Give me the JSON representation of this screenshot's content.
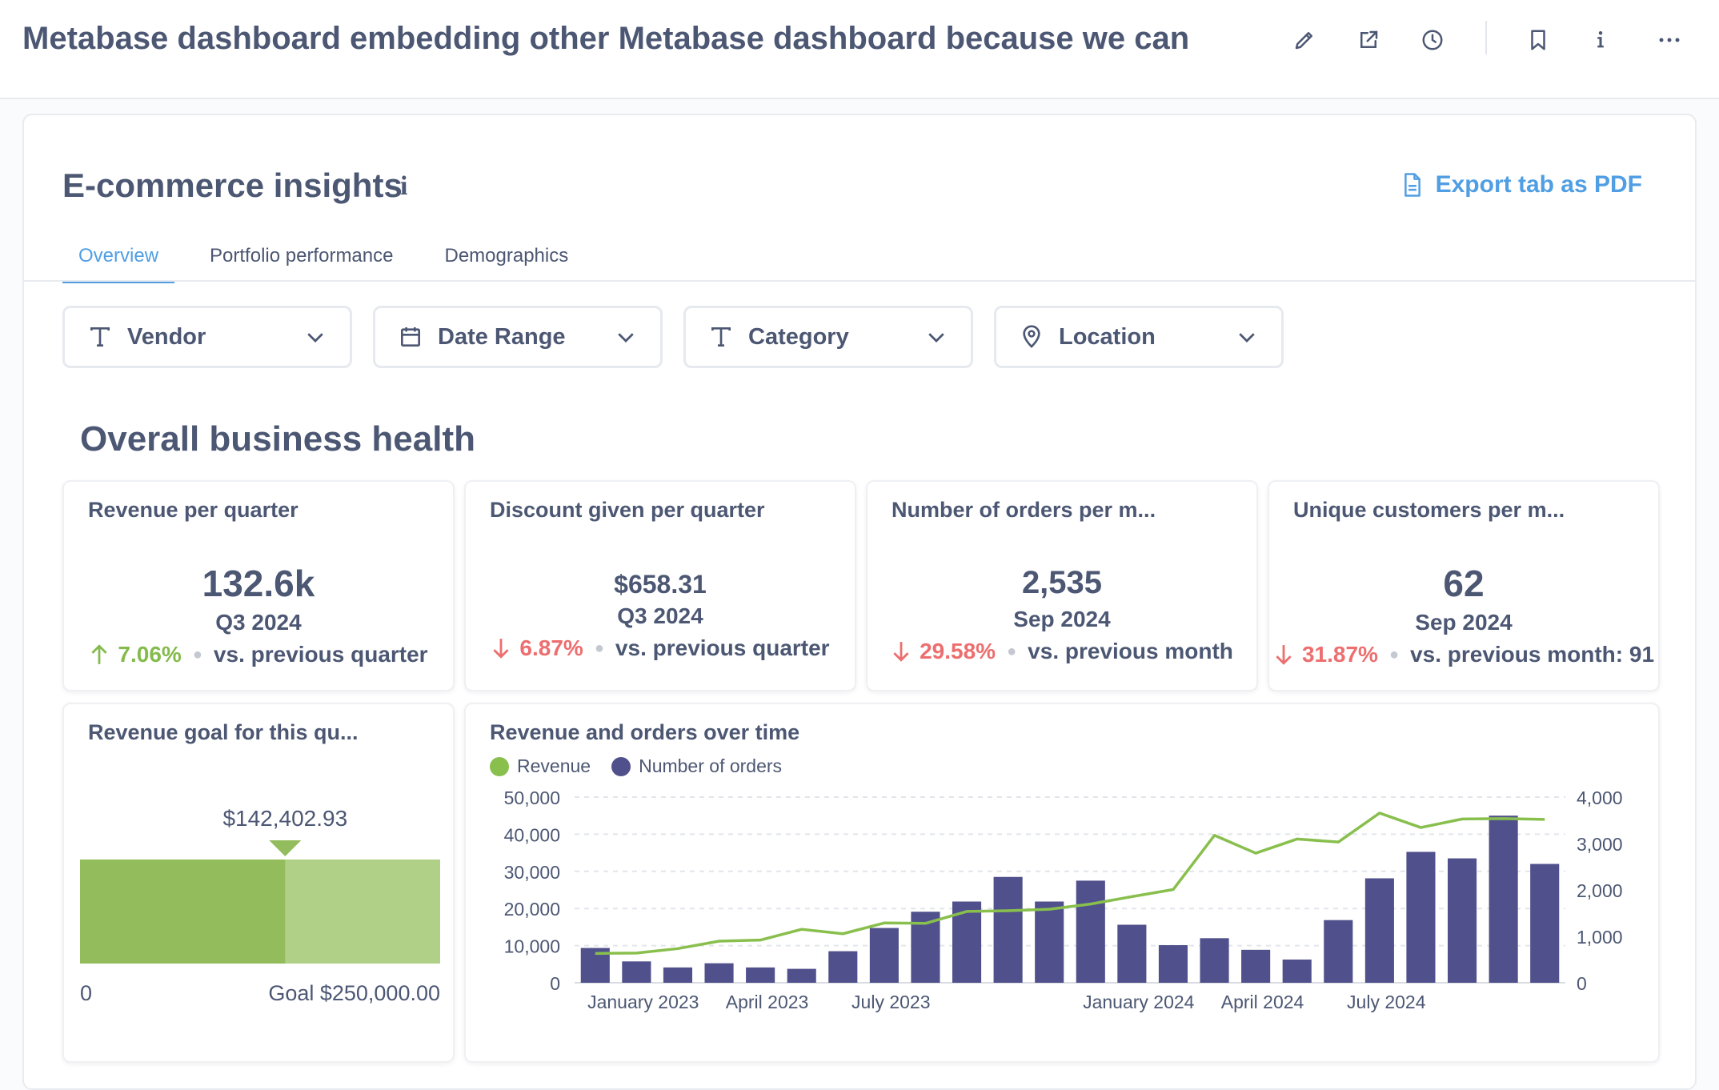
{
  "header": {
    "title": "Metabase dashboard embedding other Metabase dashboard because we can",
    "icons": [
      "pencil-icon",
      "share-icon",
      "clock-icon",
      "bookmark-icon",
      "info-icon",
      "more-icon"
    ]
  },
  "dashboard": {
    "title": "E-commerce insights",
    "info_glyph": "i",
    "export_label": "Export tab as PDF",
    "tabs": [
      {
        "label": "Overview",
        "active": true
      },
      {
        "label": "Portfolio performance",
        "active": false
      },
      {
        "label": "Demographics",
        "active": false
      }
    ],
    "filters": [
      {
        "label": "Vendor",
        "icon": "text-icon"
      },
      {
        "label": "Date Range",
        "icon": "calendar-icon"
      },
      {
        "label": "Category",
        "icon": "text-icon"
      },
      {
        "label": "Location",
        "icon": "location-pin-icon"
      }
    ],
    "section_title": "Overall business health"
  },
  "kpis": [
    {
      "title": "Revenue per quarter",
      "value": "132.6k",
      "period": "Q3 2024",
      "direction": "up",
      "change": "7.06%",
      "comparison": "vs. previous quarter"
    },
    {
      "title": "Discount given per quarter",
      "value": "$658.31",
      "period": "Q3 2024",
      "direction": "down",
      "change": "6.87%",
      "comparison": "vs. previous quarter"
    },
    {
      "title": "Number of orders per m...",
      "value": "2,535",
      "period": "Sep 2024",
      "direction": "down",
      "change": "29.58%",
      "comparison": "vs. previous month"
    },
    {
      "title": "Unique customers per m...",
      "value": "62",
      "period": "Sep 2024",
      "direction": "down",
      "change": "31.87%",
      "comparison": "vs. previous month: 91"
    }
  ],
  "goal": {
    "title": "Revenue goal for this qu...",
    "current_label": "$142,402.93",
    "current": 142402.93,
    "goal": 250000,
    "min_label": "0",
    "goal_label": "Goal $250,000.00",
    "colors": {
      "filled": "#93bc5c",
      "remaining": "#b1d087",
      "marker": "#93bc5c"
    }
  },
  "chart_data": {
    "type": "bar",
    "title": "Revenue and orders over time",
    "x_tick_labels": [
      "January 2023",
      "April 2023",
      "July 2023",
      "January 2024",
      "April 2024",
      "July 2024"
    ],
    "y_left": {
      "ticks": [
        "50,000",
        "40,000",
        "30,000",
        "20,000",
        "10,000",
        "0"
      ],
      "min": 0,
      "max": 50000
    },
    "y_right": {
      "ticks": [
        "4,000",
        "3,000",
        "2,000",
        "1,000",
        "0"
      ],
      "min": 0,
      "max": 4000
    },
    "grid": true,
    "series": [
      {
        "name": "Revenue",
        "type": "line",
        "axis": "left",
        "color": "#88bf4d",
        "values": [
          7900,
          8000,
          9200,
          11200,
          11500,
          14400,
          13200,
          16100,
          16000,
          19200,
          19400,
          19800,
          21200,
          23200,
          25100,
          39700,
          34900,
          38700,
          37900,
          45700,
          41800,
          44100,
          44200,
          44000
        ]
      },
      {
        "name": "Number of orders",
        "type": "bar",
        "axis": "right",
        "color": "#50508c",
        "values": [
          750,
          460,
          330,
          420,
          330,
          300,
          680,
          1180,
          1530,
          1750,
          2280,
          1750,
          2200,
          1250,
          810,
          960,
          710,
          500,
          1350,
          2250,
          2820,
          2680,
          3600,
          2560
        ]
      }
    ],
    "legend_position": "top-left"
  }
}
